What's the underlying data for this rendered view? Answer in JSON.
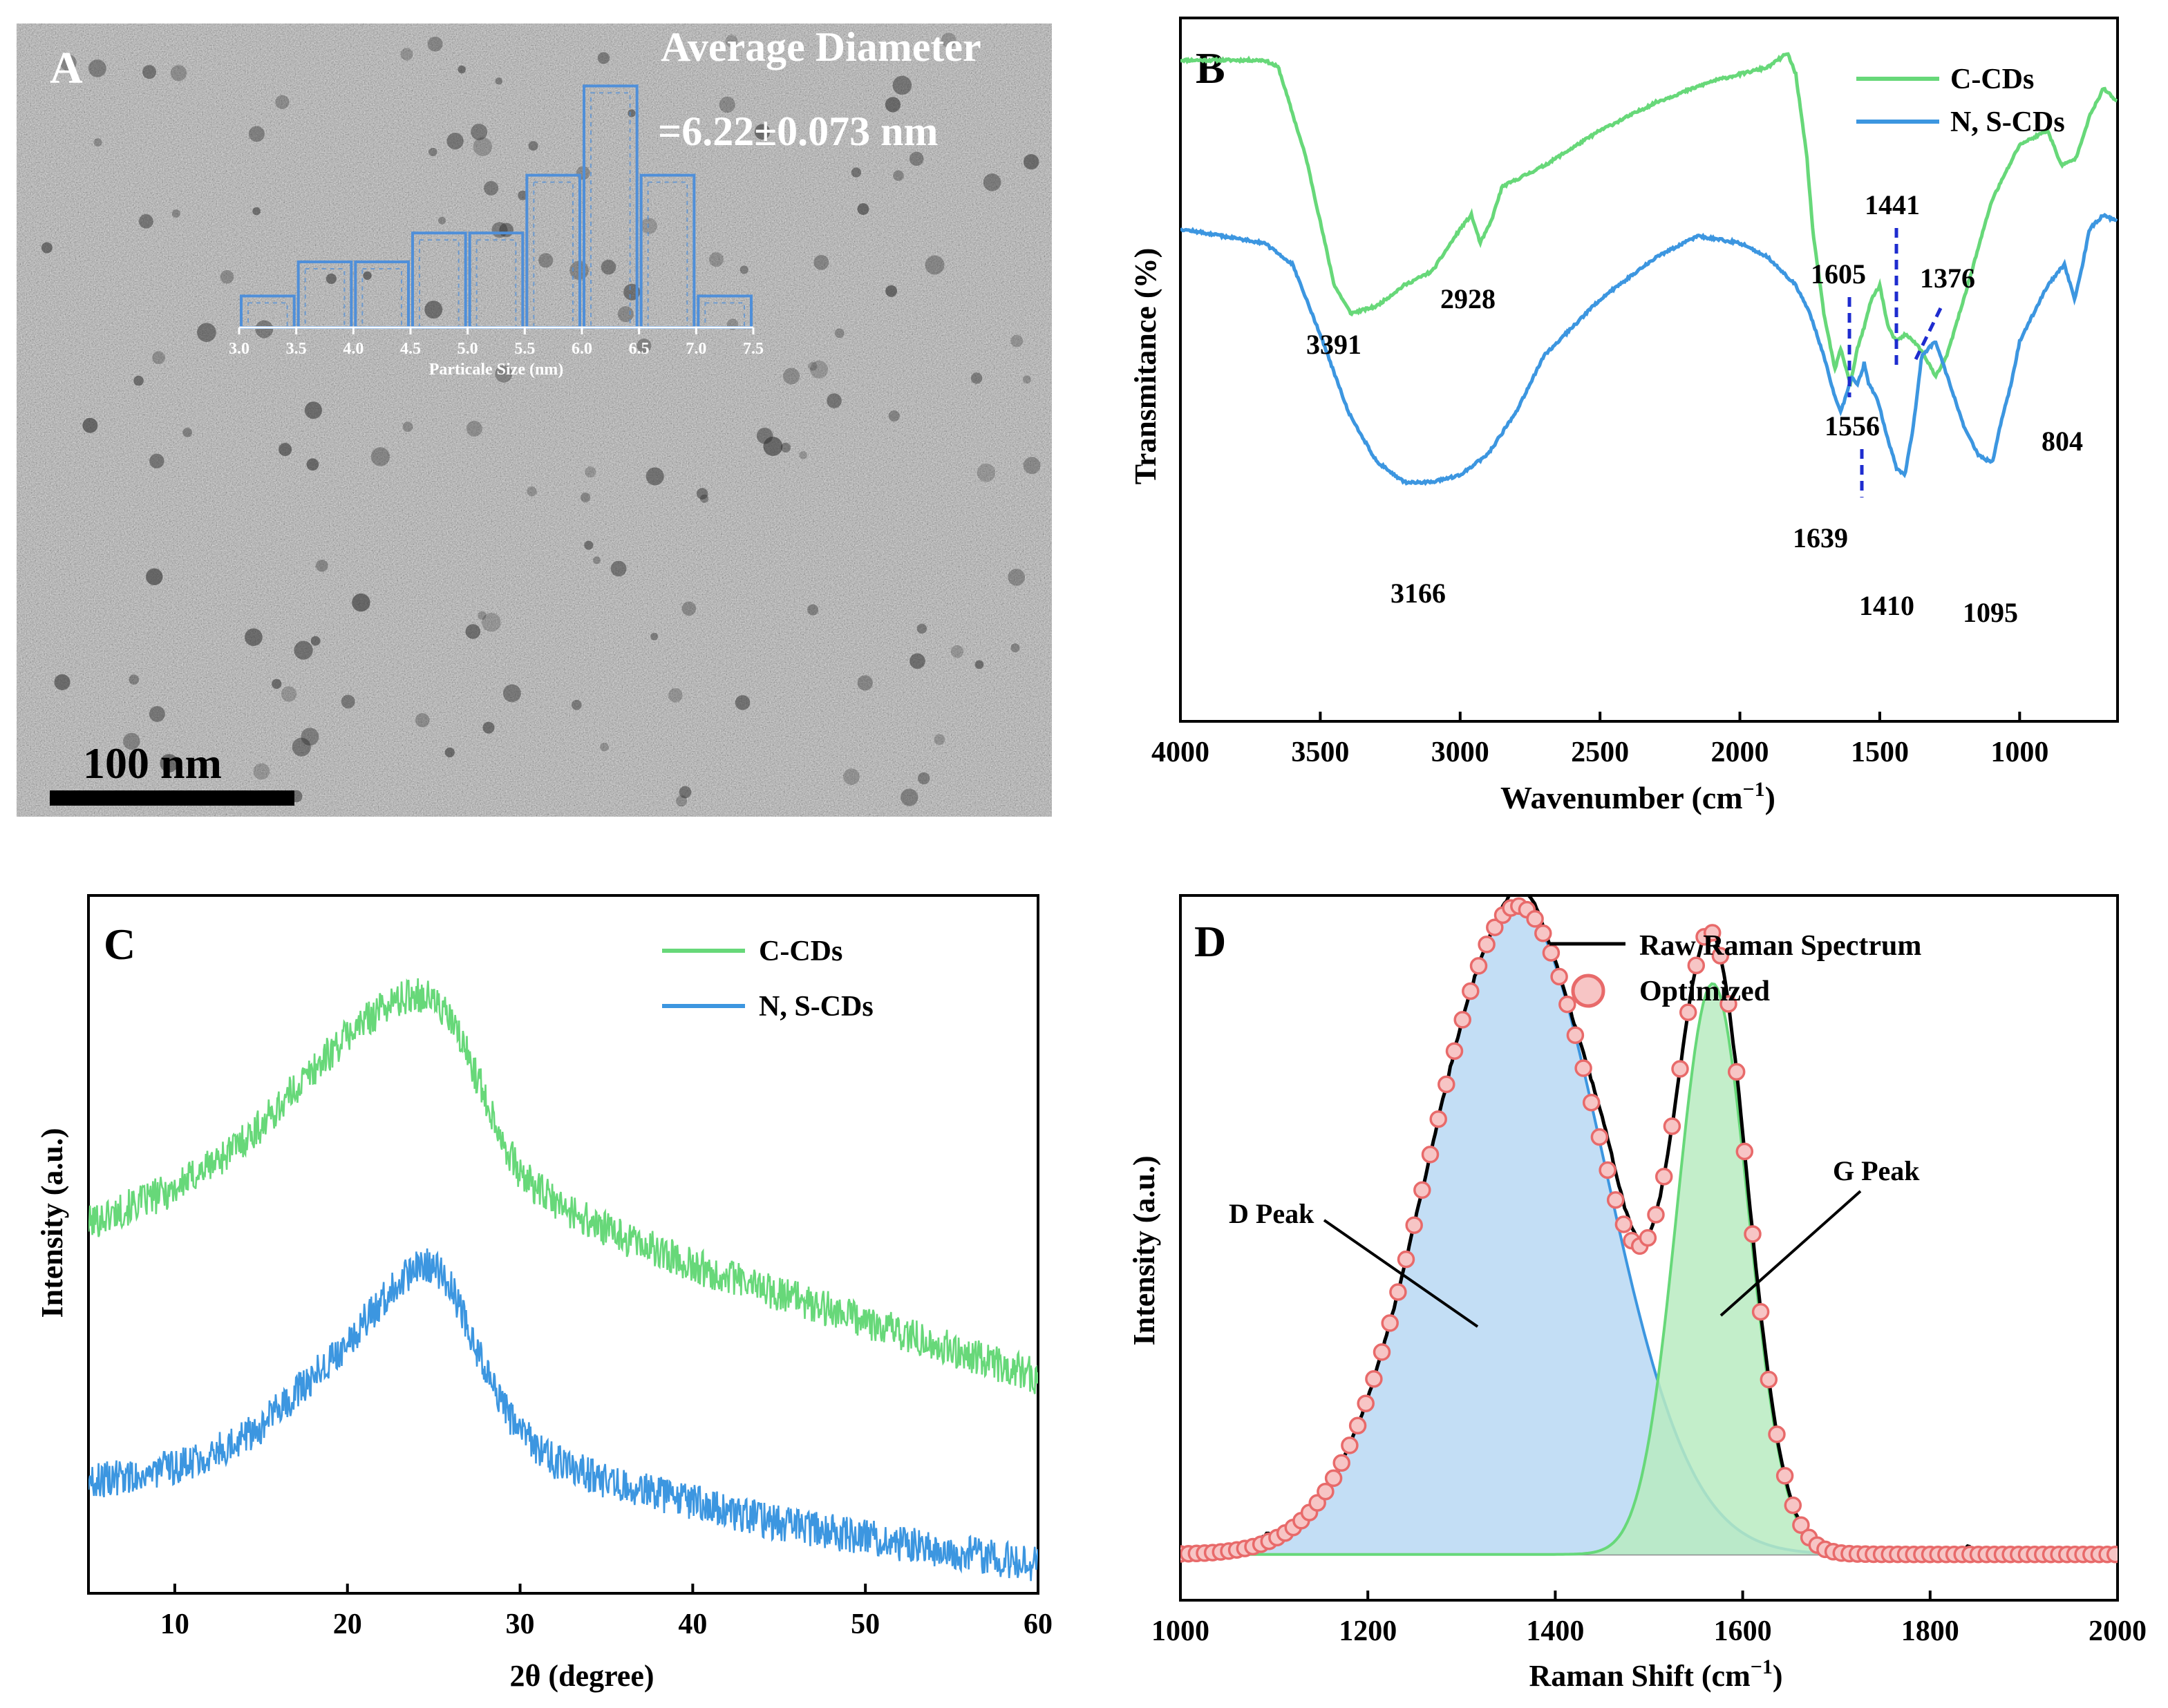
{
  "colors": {
    "green": "#67d879",
    "blue": "#3c96e0",
    "red": "#e86a6a",
    "red_fill": "#f7c5c5",
    "blue_fill": "#b8d8f3",
    "green_fill": "#b9ebc1",
    "hist": "#4f8fd9",
    "black": "#000000",
    "dash": "#1e2ccf"
  },
  "panel_a": {
    "label": "A",
    "avg_title": "Average Diameter",
    "avg_value": "=6.22±0.073 nm",
    "scale_bar": "100 nm",
    "hist_xlabel": "Particale Size (nm)",
    "hist_ticks": [
      "3.0",
      "3.5",
      "4.0",
      "4.5",
      "5.0",
      "5.5",
      "6.0",
      "6.5",
      "7.0",
      "7.5"
    ],
    "hist_bins": [
      {
        "from": 3.0,
        "to": 3.5,
        "count": 1.2
      },
      {
        "from": 3.5,
        "to": 4.0,
        "count": 2.5
      },
      {
        "from": 4.0,
        "to": 4.5,
        "count": 2.5
      },
      {
        "from": 4.5,
        "to": 5.0,
        "count": 3.6
      },
      {
        "from": 5.0,
        "to": 5.5,
        "count": 3.6
      },
      {
        "from": 5.5,
        "to": 6.0,
        "count": 5.8
      },
      {
        "from": 6.0,
        "to": 6.5,
        "count": 9.2
      },
      {
        "from": 6.5,
        "to": 7.0,
        "count": 5.8
      },
      {
        "from": 7.0,
        "to": 7.5,
        "count": 1.2
      }
    ]
  },
  "chart_data": [
    {
      "id": "B",
      "type": "line",
      "label": "B",
      "xlabel": "Wavenumber (cm",
      "xlabel_sup": "−1",
      "xlabel_end": ")",
      "ylabel": "Transmitance (%)",
      "xlim": [
        4000,
        650
      ],
      "ylim": [
        0,
        100
      ],
      "xticks": [
        "4000",
        "3500",
        "3000",
        "2500",
        "2000",
        "1500",
        "1000"
      ],
      "xtick_values": [
        4000,
        3500,
        3000,
        2500,
        2000,
        1500,
        1000
      ],
      "legend": [
        "C-CDs",
        "N, S-CDs"
      ],
      "series": [
        {
          "name": "C-CDs",
          "x": [
            4000,
            3700,
            3650,
            3550,
            3450,
            3391,
            3300,
            3200,
            3100,
            3000,
            2960,
            2928,
            2890,
            2850,
            2700,
            2500,
            2300,
            2100,
            1900,
            1830,
            1800,
            1760,
            1740,
            1700,
            1660,
            1640,
            1605,
            1580,
            1556,
            1530,
            1500,
            1470,
            1441,
            1410,
            1376,
            1340,
            1300,
            1260,
            1200,
            1100,
            1000,
            900,
            850,
            800,
            750,
            700,
            650
          ],
          "y": [
            94,
            94,
            93,
            80,
            62,
            58,
            59,
            62,
            64,
            70,
            72,
            68,
            71,
            76,
            79,
            84,
            88,
            91,
            93,
            95,
            92,
            80,
            70,
            58,
            50,
            53,
            48,
            53,
            56,
            60,
            62,
            56,
            54,
            55,
            54,
            52,
            49,
            52,
            60,
            74,
            82,
            84,
            79,
            80,
            86,
            90,
            88
          ]
        },
        {
          "name": "N, S-CDs",
          "x": [
            4000,
            3700,
            3600,
            3500,
            3400,
            3300,
            3200,
            3166,
            3100,
            3000,
            2900,
            2800,
            2700,
            2500,
            2300,
            2150,
            2000,
            1900,
            1800,
            1750,
            1700,
            1660,
            1639,
            1600,
            1580,
            1560,
            1556,
            1540,
            1510,
            1470,
            1440,
            1410,
            1380,
            1350,
            1300,
            1250,
            1200,
            1150,
            1110,
            1095,
            1070,
            1030,
            1000,
            950,
            900,
            860,
            840,
            804,
            780,
            750,
            700,
            650
          ],
          "y": [
            70,
            68,
            65,
            55,
            44,
            37,
            34,
            34,
            34,
            35,
            38,
            44,
            52,
            60,
            66,
            69,
            68,
            66,
            62,
            58,
            52,
            46,
            44,
            49,
            48,
            50,
            51,
            48,
            46,
            40,
            36,
            35,
            42,
            52,
            54,
            48,
            42,
            38,
            37,
            37,
            42,
            48,
            54,
            58,
            62,
            64,
            65,
            60,
            64,
            70,
            72,
            71
          ]
        }
      ],
      "annotations": [
        "3391",
        "2928",
        "1605",
        "1441",
        "1376",
        "1556",
        "3166",
        "1639",
        "1410",
        "1095",
        "804"
      ]
    },
    {
      "id": "C",
      "type": "line",
      "label": "C",
      "xlabel": "2θ (degree)",
      "ylabel": "Intensity (a.u.)",
      "xlim": [
        5,
        60
      ],
      "ylim": [
        0,
        100
      ],
      "xticks": [
        "10",
        "20",
        "30",
        "40",
        "50",
        "60"
      ],
      "xtick_values": [
        10,
        20,
        30,
        40,
        50,
        60
      ],
      "legend": [
        "C-CDs",
        "N, S-CDs"
      ],
      "series": [
        {
          "name": "C-CDs",
          "x": [
            5,
            8,
            10,
            13,
            15,
            18,
            20,
            22,
            24,
            25,
            26,
            27,
            28,
            29,
            30,
            32,
            35,
            40,
            45,
            50,
            55,
            60
          ],
          "y": [
            53,
            56,
            58,
            63,
            67,
            75,
            80,
            84,
            86,
            85,
            82,
            77,
            71,
            65,
            60,
            56,
            52,
            47,
            43,
            39,
            35,
            31
          ]
        },
        {
          "name": "N, S-CDs",
          "x": [
            5,
            8,
            10,
            13,
            15,
            18,
            20,
            22,
            24,
            25,
            26,
            27,
            28,
            29,
            30,
            32,
            35,
            40,
            45,
            50,
            55,
            60
          ],
          "y": [
            16,
            17,
            18,
            21,
            24,
            31,
            36,
            42,
            47,
            47,
            44,
            38,
            32,
            27,
            23,
            19,
            16,
            13,
            10,
            8,
            6,
            4
          ]
        }
      ]
    },
    {
      "id": "D",
      "type": "line",
      "label": "D",
      "xlabel": "Raman Shift (cm",
      "xlabel_sup": "−1",
      "xlabel_end": ")",
      "ylabel": "Intensity (a.u.)",
      "xlim": [
        1000,
        2000
      ],
      "ylim": [
        0,
        100
      ],
      "xticks": [
        "1000",
        "1200",
        "1400",
        "1600",
        "1800",
        "2000"
      ],
      "xtick_values": [
        1000,
        1200,
        1400,
        1600,
        1800,
        2000
      ],
      "legend": [
        "Raw Raman Spectrum",
        "Optimized"
      ],
      "peak_labels": [
        "D Peak",
        "G Peak"
      ],
      "components": [
        {
          "name": "D Peak",
          "center": 1360,
          "height": 92,
          "sigma_left": 95,
          "sigma_right": 92
        },
        {
          "name": "G Peak",
          "center": 1568,
          "height": 81,
          "sigma_left": 38,
          "sigma_right": 38
        }
      ]
    }
  ]
}
